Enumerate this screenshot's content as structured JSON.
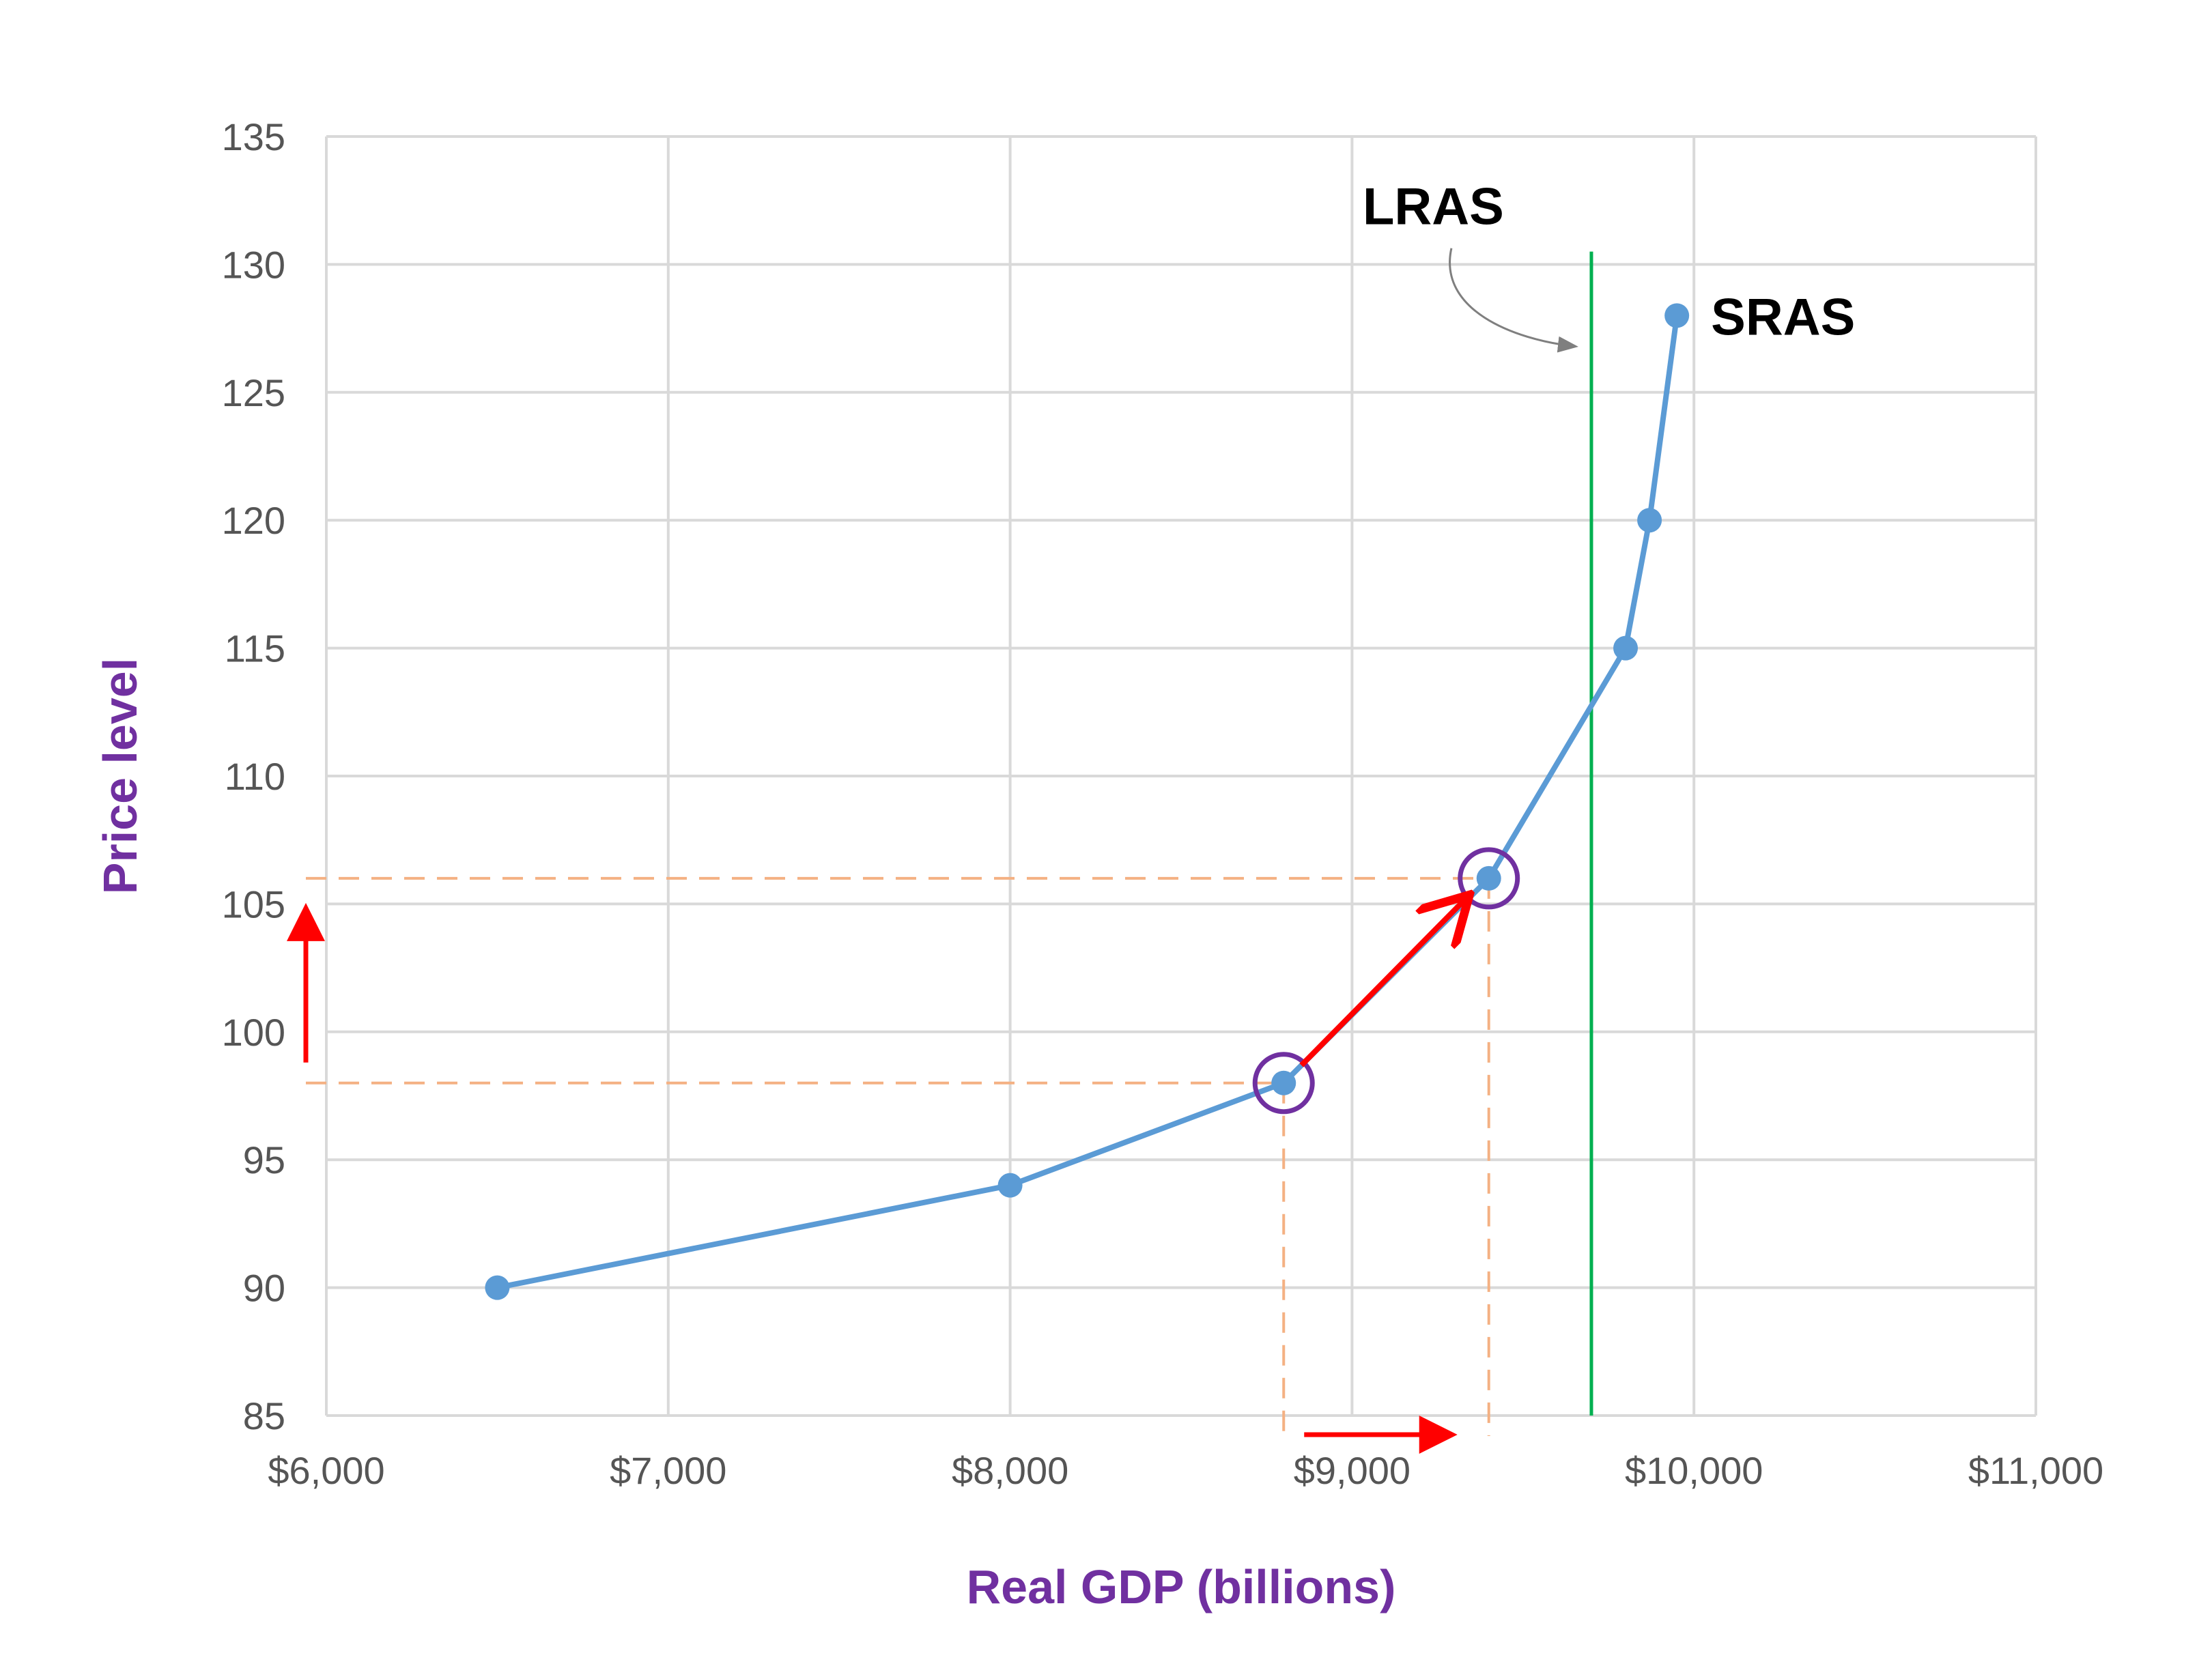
{
  "chart_data": {
    "type": "line",
    "title": "",
    "xlabel": "Real GDP (billions)",
    "ylabel": "Price level",
    "xlim": [
      6000,
      11000
    ],
    "ylim": [
      85,
      135
    ],
    "grid": true,
    "x_ticks": [
      {
        "value": 6000,
        "label": "$6,000"
      },
      {
        "value": 7000,
        "label": "$7,000"
      },
      {
        "value": 8000,
        "label": "$8,000"
      },
      {
        "value": 9000,
        "label": "$9,000"
      },
      {
        "value": 10000,
        "label": "$10,000"
      },
      {
        "value": 11000,
        "label": "$11,000"
      }
    ],
    "y_ticks": [
      {
        "value": 85,
        "label": "85"
      },
      {
        "value": 90,
        "label": "90"
      },
      {
        "value": 95,
        "label": "95"
      },
      {
        "value": 100,
        "label": "100"
      },
      {
        "value": 105,
        "label": "105"
      },
      {
        "value": 110,
        "label": "110"
      },
      {
        "value": 115,
        "label": "115"
      },
      {
        "value": 120,
        "label": "120"
      },
      {
        "value": 125,
        "label": "125"
      },
      {
        "value": 130,
        "label": "130"
      },
      {
        "value": 135,
        "label": "135"
      }
    ],
    "series": [
      {
        "name": "SRAS",
        "color": "#5b9bd5",
        "points": [
          {
            "x": 6500,
            "y": 90
          },
          {
            "x": 8000,
            "y": 94
          },
          {
            "x": 8800,
            "y": 98
          },
          {
            "x": 9400,
            "y": 106
          },
          {
            "x": 9800,
            "y": 115
          },
          {
            "x": 9870,
            "y": 120
          },
          {
            "x": 9950,
            "y": 128
          }
        ]
      }
    ],
    "lras": {
      "name": "LRAS",
      "x": 9700,
      "y_range": [
        85,
        130.5
      ],
      "color": "#00b050"
    },
    "highlighted_points": [
      {
        "x": 8800,
        "y": 98
      },
      {
        "x": 9400,
        "y": 106
      }
    ],
    "colors": {
      "highlight_circle": "#7030a0",
      "guide_lines": "#f4b183",
      "arrows": "#ff0000",
      "label_arrow": "#7f7f7f",
      "grid": "#d9d9d9",
      "axis_title": "#7030a0",
      "tick_label": "#555555"
    }
  }
}
